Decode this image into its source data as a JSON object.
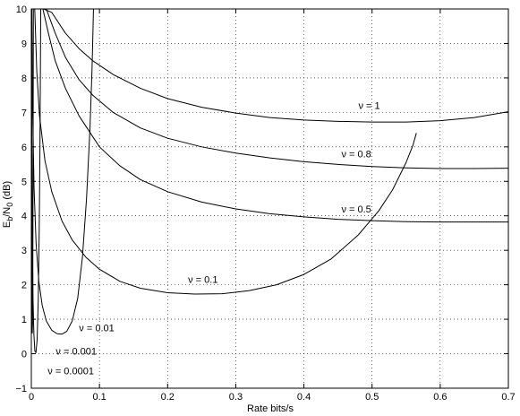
{
  "chart_data": {
    "type": "line",
    "title": "",
    "xlabel": "Rate bits/s",
    "ylabel_parts": {
      "E": "E",
      "b": "b",
      "slash": "/N",
      "zero": "0",
      "unit": " (dB)"
    },
    "xlim": [
      0,
      0.7
    ],
    "ylim": [
      -1,
      10
    ],
    "xticks": [
      0,
      0.1,
      0.2,
      0.3,
      0.4,
      0.5,
      0.6,
      0.7
    ],
    "xtick_labels": [
      "0",
      "0.1",
      "0.2",
      "0.3",
      "0.4",
      "0.5",
      "0.6",
      "0.7"
    ],
    "yticks": [
      -1,
      0,
      1,
      2,
      3,
      4,
      5,
      6,
      7,
      8,
      9,
      10
    ],
    "ytick_labels": [
      "−1",
      "0",
      "1",
      "2",
      "3",
      "4",
      "5",
      "6",
      "7",
      "8",
      "9",
      "10"
    ],
    "grid": true,
    "series": [
      {
        "name": "ν = 1",
        "color": "#000000",
        "x": [
          0.018,
          0.03,
          0.05,
          0.07,
          0.09,
          0.12,
          0.16,
          0.2,
          0.25,
          0.3,
          0.35,
          0.4,
          0.45,
          0.5,
          0.55,
          0.6,
          0.65,
          0.7
        ],
        "y": [
          10.0,
          9.9,
          9.3,
          8.85,
          8.5,
          8.1,
          7.7,
          7.4,
          7.15,
          6.98,
          6.85,
          6.78,
          6.74,
          6.72,
          6.72,
          6.76,
          6.85,
          7.02
        ]
      },
      {
        "name": "ν = 0.8",
        "color": "#000000",
        "x": [
          0.022,
          0.035,
          0.05,
          0.07,
          0.09,
          0.12,
          0.16,
          0.2,
          0.25,
          0.3,
          0.35,
          0.4,
          0.45,
          0.5,
          0.55,
          0.6,
          0.65,
          0.7
        ],
        "y": [
          10.0,
          9.3,
          8.6,
          7.95,
          7.5,
          7.0,
          6.55,
          6.25,
          6.0,
          5.82,
          5.68,
          5.57,
          5.49,
          5.43,
          5.39,
          5.37,
          5.37,
          5.38
        ]
      },
      {
        "name": "ν = 0.5",
        "color": "#000000",
        "x": [
          0.017,
          0.025,
          0.035,
          0.05,
          0.07,
          0.1,
          0.13,
          0.16,
          0.2,
          0.25,
          0.3,
          0.35,
          0.4,
          0.45,
          0.5,
          0.55,
          0.6,
          0.65,
          0.7
        ],
        "y": [
          10.0,
          9.3,
          8.5,
          7.7,
          6.9,
          6.0,
          5.45,
          5.05,
          4.7,
          4.4,
          4.2,
          4.06,
          3.97,
          3.9,
          3.86,
          3.83,
          3.82,
          3.82,
          3.82
        ]
      },
      {
        "name": "ν = 0.1",
        "color": "#000000",
        "x": [
          0.005,
          0.008,
          0.012,
          0.02,
          0.03,
          0.045,
          0.06,
          0.08,
          0.1,
          0.13,
          0.16,
          0.2,
          0.24,
          0.28,
          0.32,
          0.36,
          0.4,
          0.44,
          0.48,
          0.51,
          0.53,
          0.55,
          0.56,
          0.565
        ],
        "y": [
          10.0,
          8.2,
          6.9,
          5.6,
          4.7,
          3.85,
          3.3,
          2.8,
          2.45,
          2.1,
          1.9,
          1.77,
          1.73,
          1.74,
          1.83,
          2.0,
          2.3,
          2.75,
          3.45,
          4.15,
          4.75,
          5.55,
          6.05,
          6.4
        ]
      },
      {
        "name": "ν = 0.01",
        "color": "#000000",
        "x": [
          0.0008,
          0.002,
          0.004,
          0.007,
          0.011,
          0.016,
          0.022,
          0.03,
          0.038,
          0.045,
          0.052,
          0.06,
          0.068,
          0.075,
          0.081,
          0.086,
          0.089,
          0.0905,
          0.0912
        ],
        "y": [
          10.0,
          7.0,
          4.8,
          3.2,
          2.1,
          1.4,
          0.95,
          0.68,
          0.58,
          0.57,
          0.65,
          0.95,
          1.6,
          2.8,
          4.5,
          6.5,
          8.2,
          9.4,
          10.0
        ]
      },
      {
        "name": "ν = 0.001",
        "color": "#000000",
        "x": [
          0.0002,
          0.0008,
          0.0015,
          0.0025,
          0.0038,
          0.0052,
          0.0068,
          0.0085,
          0.0102,
          0.0116,
          0.0126,
          0.0132,
          0.0136,
          0.0138
        ],
        "y": [
          10.0,
          6.0,
          3.5,
          1.6,
          0.55,
          0.08,
          0.03,
          0.4,
          1.6,
          3.6,
          5.8,
          7.8,
          9.2,
          10.0
        ]
      },
      {
        "name": "ν = 0.0001",
        "color": "#000000",
        "x": [
          0.0001,
          0.0003,
          0.0006,
          0.001,
          0.0014,
          0.0018,
          0.0022,
          0.0025,
          0.0027,
          0.0029,
          0.003
        ],
        "y": [
          10.0,
          6.5,
          3.5,
          1.4,
          0.6,
          0.9,
          2.5,
          4.8,
          6.8,
          8.8,
          10.0
        ]
      }
    ],
    "annotations": [
      {
        "text": "ν = 1",
        "x": 0.48,
        "y": 7.1
      },
      {
        "text": "ν = 0.8",
        "x": 0.455,
        "y": 5.7
      },
      {
        "text": "ν = 0.5",
        "x": 0.455,
        "y": 4.1
      },
      {
        "text": "ν = 0.1",
        "x": 0.23,
        "y": 2.05
      },
      {
        "text": "ν = 0.01",
        "x": 0.07,
        "y": 0.65
      },
      {
        "text": "ν = 0.001",
        "x": 0.036,
        "y": -0.02
      },
      {
        "text": "ν = 0.0001",
        "x": 0.024,
        "y": -0.6
      }
    ]
  }
}
